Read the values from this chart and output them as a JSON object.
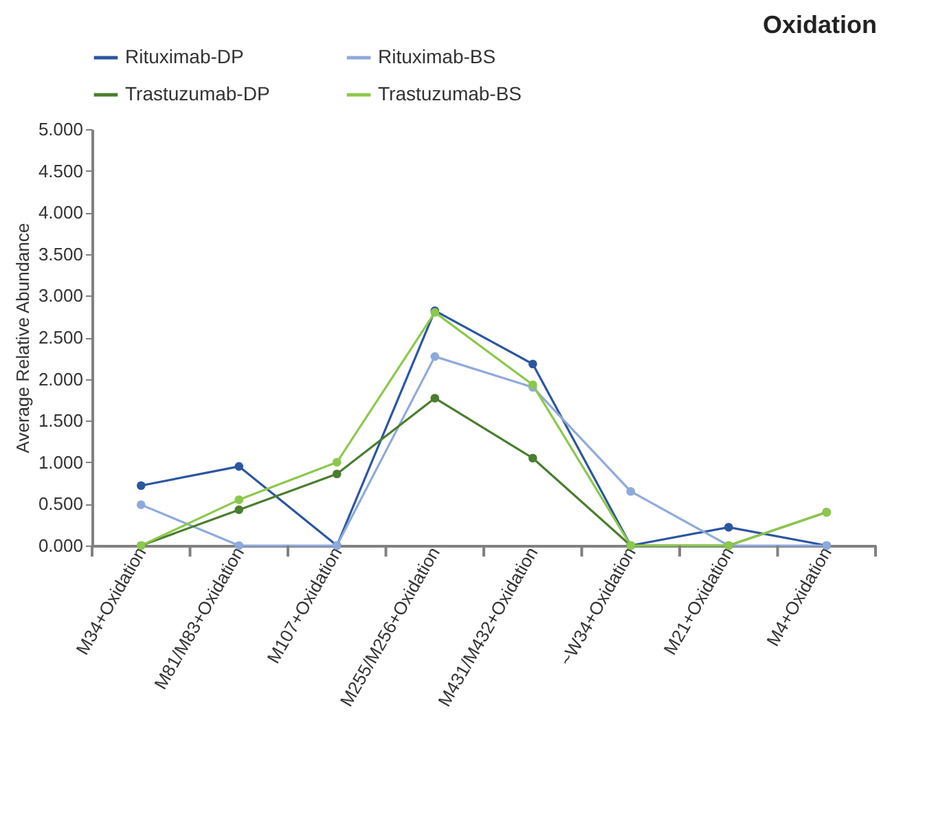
{
  "chart_data": {
    "type": "line",
    "title": "Oxidation",
    "ylabel": "Average Relative Abundance",
    "categories": [
      "M34+Oxidation",
      "M81/M83+Oxidation",
      "M107+Oxidation",
      "M255/M256+Oxidation",
      "M431/M432+Oxidation",
      "~W34+Oxidation",
      "M21+Oxidation",
      "M4+Oxidation"
    ],
    "series": [
      {
        "name": "Rituximab-DP",
        "color": "#2b56a0",
        "values": [
          0.72,
          0.95,
          0,
          2.82,
          2.18,
          0,
          0.22,
          0
        ]
      },
      {
        "name": "Rituximab-BS",
        "color": "#8eaadb",
        "values": [
          0.49,
          0,
          0,
          2.27,
          1.9,
          0.65,
          0,
          0
        ]
      },
      {
        "name": "Trastuzumab-DP",
        "color": "#4a7d2e",
        "values": [
          0,
          0.43,
          0.86,
          1.77,
          1.05,
          0,
          0,
          0.4
        ]
      },
      {
        "name": "Trastuzumab-BS",
        "color": "#8cc84b",
        "values": [
          0,
          0.55,
          1.0,
          2.8,
          1.93,
          0,
          0,
          0.4
        ]
      }
    ],
    "ylim": [
      0,
      5
    ],
    "yticks": [
      {
        "value": 0,
        "label": "0.000"
      },
      {
        "value": 0.5,
        "label": "0.500"
      },
      {
        "value": 1,
        "label": "1.000"
      },
      {
        "value": 1.5,
        "label": "1.500"
      },
      {
        "value": 2,
        "label": "2.000"
      },
      {
        "value": 2.5,
        "label": "2.500"
      },
      {
        "value": 3,
        "label": "3.000"
      },
      {
        "value": 3.5,
        "label": "3.500"
      },
      {
        "value": 4,
        "label": "4.000"
      },
      {
        "value": 4.5,
        "label": "4.500"
      },
      {
        "value": 5,
        "label": "5.000"
      }
    ],
    "grid": false,
    "legend": "top",
    "marker": "circle",
    "line_style": "solid"
  }
}
